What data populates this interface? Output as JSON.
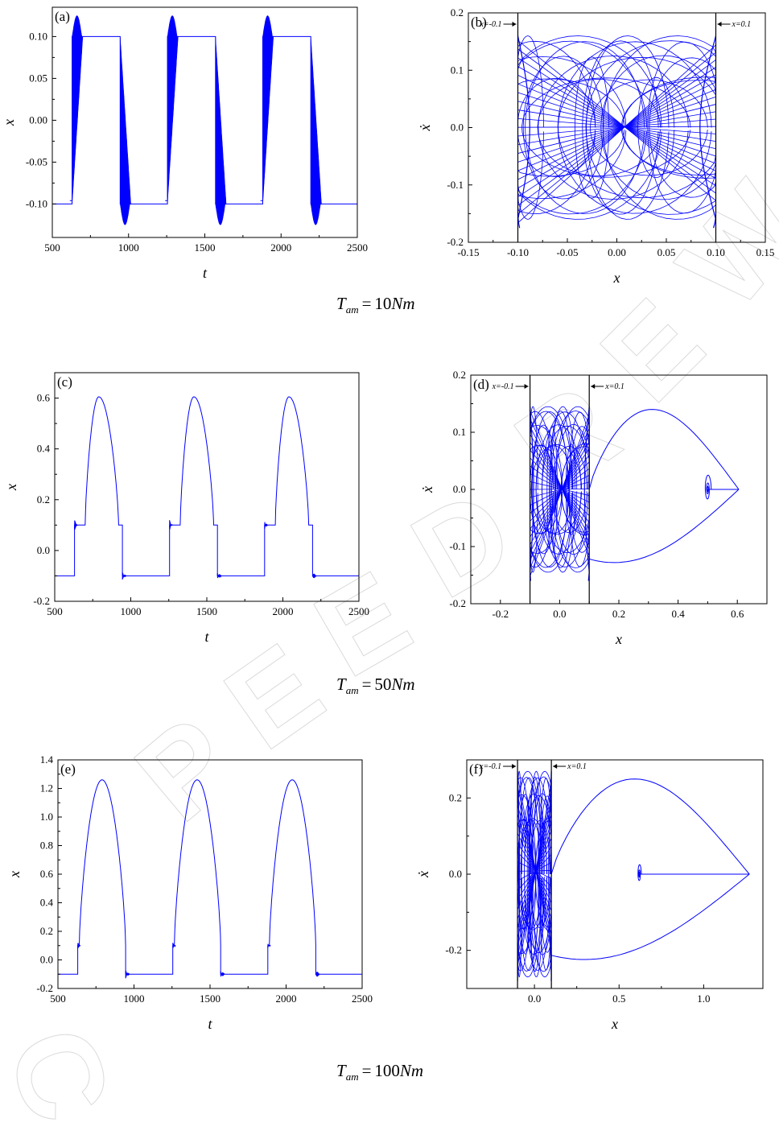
{
  "watermark": {
    "text": "ACCEPTED MANUSCRIPT",
    "color": "#d6d6d6"
  },
  "rows": [
    {
      "caption": {
        "symbol": "T",
        "subscript": "am",
        "value": "10",
        "unit": "Nm"
      }
    },
    {
      "caption": {
        "symbol": "T",
        "subscript": "am",
        "value": "50",
        "unit": "Nm"
      }
    },
    {
      "caption": {
        "symbol": "T",
        "subscript": "am",
        "value": "100",
        "unit": "Nm"
      }
    }
  ],
  "chart_data": [
    {
      "id": "a",
      "panel_label": "(a)",
      "type": "line",
      "kind": "time",
      "xlabel": "t",
      "ylabel": "x",
      "xlim": [
        500,
        2500
      ],
      "ylim": [
        -0.14,
        0.135
      ],
      "xticks": [
        500,
        1000,
        1500,
        2000,
        2500
      ],
      "xtick_labels": [
        "500",
        "1000",
        "1500",
        "2000",
        "2500"
      ],
      "yticks": [
        -0.1,
        -0.05,
        0.0,
        0.05,
        0.1
      ],
      "ytick_labels": [
        "-0.10",
        "-0.05",
        "0.00",
        "0.05",
        "0.10"
      ],
      "color": "#0000ff",
      "series": [
        {
          "band": true,
          "low_level": -0.1,
          "high_level": 0.1,
          "peak": 0.125,
          "trough": -0.125,
          "up_switch_times": [
            630,
            1255,
            1880
          ],
          "down_switch_times": [
            945,
            1570,
            2195
          ]
        }
      ]
    },
    {
      "id": "b",
      "panel_label": "(b)",
      "type": "line",
      "kind": "phase",
      "xlabel": "x",
      "ylabel": "ẋ",
      "xlim": [
        -0.15,
        0.15
      ],
      "ylim": [
        -0.2,
        0.2
      ],
      "xticks": [
        -0.15,
        -0.1,
        -0.05,
        0.0,
        0.05,
        0.1,
        0.15
      ],
      "xtick_labels": [
        "-0.15",
        "-0.10",
        "-0.05",
        "0.00",
        "0.05",
        "0.10",
        "0.15"
      ],
      "yticks": [
        -0.2,
        -0.1,
        0.0,
        0.1,
        0.2
      ],
      "ytick_labels": [
        "-0.2",
        "-0.1",
        "0.0",
        "0.1",
        "0.2"
      ],
      "color": "#0000ff",
      "boundaries": [
        {
          "x": -0.1,
          "label": "x=-0.1"
        },
        {
          "x": 0.1,
          "label": "x=0.1"
        }
      ],
      "series": [
        {
          "left_wall": -0.1,
          "right_wall": 0.1,
          "max_speed": 0.16,
          "min_speed": -0.175,
          "escape": null
        }
      ]
    },
    {
      "id": "c",
      "panel_label": "(c)",
      "type": "line",
      "kind": "time",
      "xlabel": "t",
      "ylabel": "x",
      "xlim": [
        500,
        2500
      ],
      "ylim": [
        -0.2,
        0.7
      ],
      "xticks": [
        500,
        1000,
        1500,
        2000,
        2500
      ],
      "xtick_labels": [
        "500",
        "1000",
        "1500",
        "2000",
        "2500"
      ],
      "yticks": [
        -0.2,
        0.0,
        0.2,
        0.4,
        0.6
      ],
      "ytick_labels": [
        "-0.2",
        "0.0",
        "0.2",
        "0.4",
        "0.6"
      ],
      "color": "#0000ff",
      "series": [
        {
          "band": false,
          "low_level": -0.1,
          "high_level": 0.1,
          "peak": 0.605,
          "trough": -0.115,
          "up_switch_times": [
            630,
            1255,
            1880
          ],
          "down_switch_times": [
            945,
            1570,
            2195
          ],
          "rise_start": 700,
          "peak_time": 790,
          "fall_end": 920
        }
      ]
    },
    {
      "id": "d",
      "panel_label": "(d)",
      "type": "line",
      "kind": "phase",
      "xlabel": "x",
      "ylabel": "ẋ",
      "xlim": [
        -0.3,
        0.7
      ],
      "ylim": [
        -0.2,
        0.2
      ],
      "xticks": [
        -0.2,
        0.0,
        0.2,
        0.4,
        0.6
      ],
      "xtick_labels": [
        "-0.2",
        "0.0",
        "0.2",
        "0.4",
        "0.6"
      ],
      "yticks": [
        -0.2,
        -0.1,
        0.0,
        0.1,
        0.2
      ],
      "ytick_labels": [
        "-0.2",
        "-0.1",
        "0.0",
        "0.1",
        "0.2"
      ],
      "color": "#0000ff",
      "boundaries": [
        {
          "x": -0.1,
          "label": "x=-0.1"
        },
        {
          "x": 0.1,
          "label": "x=0.1"
        }
      ],
      "series": [
        {
          "left_wall": -0.1,
          "right_wall": 0.1,
          "max_speed": 0.145,
          "min_speed": -0.16,
          "escape": {
            "peak_x": 0.38,
            "peak_v": 0.14,
            "end_x": 0.605,
            "spiral_x": 0.5
          }
        }
      ]
    },
    {
      "id": "e",
      "panel_label": "(e)",
      "type": "line",
      "kind": "time",
      "xlabel": "t",
      "ylabel": "x",
      "xlim": [
        500,
        2500
      ],
      "ylim": [
        -0.2,
        1.4
      ],
      "xticks": [
        500,
        1000,
        1500,
        2000,
        2500
      ],
      "xtick_labels": [
        "500",
        "1000",
        "1500",
        "2000",
        "2500"
      ],
      "yticks": [
        -0.2,
        0.0,
        0.2,
        0.4,
        0.6,
        0.8,
        1.0,
        1.2,
        1.4
      ],
      "ytick_labels": [
        "-0.2",
        "0.0",
        "0.2",
        "0.4",
        "0.6",
        "0.8",
        "1.0",
        "1.2",
        "1.4"
      ],
      "color": "#0000ff",
      "series": [
        {
          "band": false,
          "low_level": -0.1,
          "high_level": 0.1,
          "peak": 1.26,
          "trough": -0.13,
          "up_switch_times": [
            630,
            1255,
            1880
          ],
          "down_switch_times": [
            945,
            1570,
            2195
          ],
          "rise_start": 640,
          "peak_time": 790,
          "fall_end": 945
        }
      ]
    },
    {
      "id": "f",
      "panel_label": "(f)",
      "type": "line",
      "kind": "phase",
      "xlabel": "x",
      "ylabel": "ẋ",
      "xlim": [
        -0.4,
        1.35
      ],
      "ylim": [
        -0.3,
        0.3
      ],
      "xticks": [
        0.0,
        0.5,
        1.0
      ],
      "xtick_labels": [
        "0.0",
        "0.5",
        "1.0"
      ],
      "yticks": [
        -0.2,
        0.0,
        0.2
      ],
      "ytick_labels": [
        "-0.2",
        "0.0",
        "0.2"
      ],
      "color": "#0000ff",
      "boundaries": [
        {
          "x": -0.1,
          "label": "x=-0.1"
        },
        {
          "x": 0.1,
          "label": "x=0.1"
        }
      ],
      "series": [
        {
          "left_wall": -0.1,
          "right_wall": 0.1,
          "max_speed": 0.27,
          "min_speed": -0.28,
          "escape": {
            "peak_x": 0.46,
            "peak_v": 0.25,
            "end_x": 1.27,
            "spiral_x": 0.62
          }
        }
      ]
    }
  ]
}
